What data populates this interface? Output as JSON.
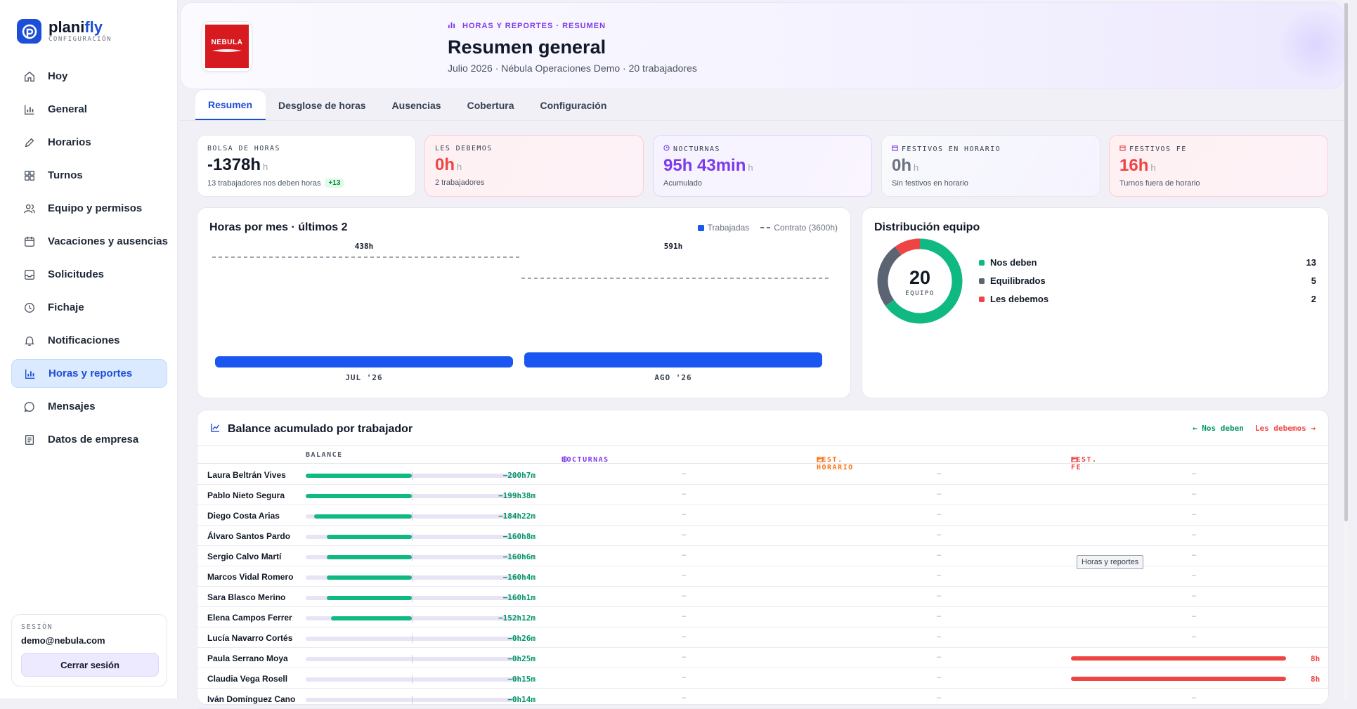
{
  "brand": {
    "name_a": "plani",
    "name_b": "fly",
    "sub": "CONFIGURACIÓN"
  },
  "sidebar": {
    "items": [
      {
        "label": "Hoy",
        "icon": "home-icon"
      },
      {
        "label": "General",
        "icon": "bar-chart-icon"
      },
      {
        "label": "Horarios",
        "icon": "pencil-icon"
      },
      {
        "label": "Turnos",
        "icon": "grid-icon"
      },
      {
        "label": "Equipo y permisos",
        "icon": "users-icon"
      },
      {
        "label": "Vacaciones y ausencias",
        "icon": "calendar-icon"
      },
      {
        "label": "Solicitudes",
        "icon": "inbox-icon"
      },
      {
        "label": "Fichaje",
        "icon": "clock-icon"
      },
      {
        "label": "Notificaciones",
        "icon": "bell-icon"
      },
      {
        "label": "Horas y reportes",
        "icon": "bar-chart-icon",
        "active": true
      },
      {
        "label": "Mensajes",
        "icon": "message-icon"
      },
      {
        "label": "Datos de empresa",
        "icon": "document-icon"
      }
    ],
    "session": {
      "label": "SESIÓN",
      "email": "demo@nebula.com",
      "logout": "Cerrar sesión"
    }
  },
  "header": {
    "company_logo_text": "NEBULA",
    "breadcrumb": "HORAS Y REPORTES · RESUMEN",
    "title": "Resumen general",
    "subtitle": "Julio 2026 · Nébula Operaciones Demo · 20 trabajadores"
  },
  "tabs": [
    "Resumen",
    "Desglose de horas",
    "Ausencias",
    "Cobertura",
    "Configuración"
  ],
  "kpis": [
    {
      "label": "BOLSA DE HORAS",
      "value": "-1378h",
      "unit": "h",
      "sub": "13 trabajadores nos deben horas",
      "badge": "+13",
      "color": "#111827"
    },
    {
      "label": "LES DEBEMOS",
      "value": "0h",
      "unit": "h",
      "sub": "2 trabajadores",
      "color": "#ef4444"
    },
    {
      "label": "NOCTURNAS",
      "value": "95h 43min",
      "unit": "h",
      "sub": "Acumulado",
      "color": "#7c3aed"
    },
    {
      "label": "FESTIVOS EN HORARIO",
      "value": "0h",
      "unit": "h",
      "sub": "Sin festivos en horario",
      "color": "#6b7280"
    },
    {
      "label": "FESTIVOS FE",
      "value": "16h",
      "unit": "h",
      "sub": "Turnos fuera de horario",
      "color": "#ef4444"
    }
  ],
  "hours_chart": {
    "title": "Horas por mes · últimos 2",
    "legend_worked": "Trabajadas",
    "legend_contract": "Contrato (3600h)"
  },
  "distribution": {
    "title": "Distribución equipo",
    "total": "20",
    "total_label": "EQUIPO"
  },
  "balance": {
    "title": "Balance acumulado por trabajador",
    "legend_left": "← Nos deben",
    "legend_right": "Les debemos →",
    "columns": [
      "BALANCE",
      "NOCTURNAS",
      "FEST. HORARIO",
      "FEST. FE"
    ],
    "rows": [
      {
        "name": "Laura Beltrán Vives",
        "balance": "−200h7m",
        "minutes": -12007,
        "fe": null
      },
      {
        "name": "Pablo Nieto Segura",
        "balance": "−199h38m",
        "minutes": -11978,
        "fe": null
      },
      {
        "name": "Diego Costa Arias",
        "balance": "−184h22m",
        "minutes": -11062,
        "fe": null
      },
      {
        "name": "Álvaro Santos Pardo",
        "balance": "−160h8m",
        "minutes": -9608,
        "fe": null
      },
      {
        "name": "Sergio Calvo Martí",
        "balance": "−160h6m",
        "minutes": -9606,
        "fe": null
      },
      {
        "name": "Marcos Vidal Romero",
        "balance": "−160h4m",
        "minutes": -9604,
        "fe": null
      },
      {
        "name": "Sara Blasco Merino",
        "balance": "−160h1m",
        "minutes": -9601,
        "fe": null
      },
      {
        "name": "Elena Campos Ferrer",
        "balance": "−152h12m",
        "minutes": -9132,
        "fe": null
      },
      {
        "name": "Lucía Navarro Cortés",
        "balance": "−0h26m",
        "minutes": -26,
        "fe": null
      },
      {
        "name": "Paula Serrano Moya",
        "balance": "−0h25m",
        "minutes": -25,
        "fe": "8h"
      },
      {
        "name": "Claudia Vega Rosell",
        "balance": "−0h15m",
        "minutes": -15,
        "fe": "8h"
      },
      {
        "name": "Iván Domínguez Cano",
        "balance": "−0h14m",
        "minutes": -14,
        "fe": null
      }
    ],
    "dash": "–"
  },
  "tooltip": "Horas y reportes",
  "chart_data": [
    {
      "type": "bar",
      "title": "Horas por mes · últimos 2",
      "categories": [
        "JUL '26",
        "AGO '26"
      ],
      "series": [
        {
          "name": "Trabajadas",
          "values": [
            438,
            591
          ],
          "color": "#1a56f0"
        },
        {
          "name": "Contrato (3600h)",
          "values": [
            3600,
            3600
          ],
          "style": "dashed"
        }
      ],
      "data_labels": [
        "438h",
        "591h"
      ]
    },
    {
      "type": "pie",
      "title": "Distribución equipo",
      "labels": [
        "Nos deben",
        "Equilibrados",
        "Les debemos"
      ],
      "values": [
        13,
        5,
        2
      ],
      "colors": [
        "#10b981",
        "#5b6472",
        "#ef4444"
      ],
      "center_value": "20",
      "center_label": "EQUIPO"
    }
  ]
}
